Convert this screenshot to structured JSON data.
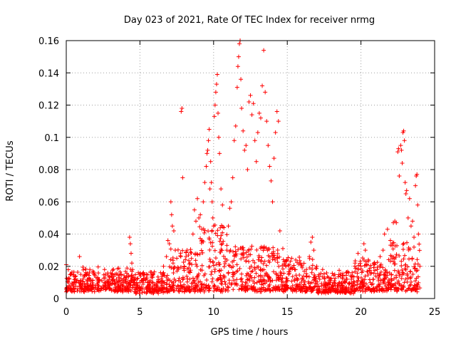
{
  "chart_data": {
    "type": "scatter",
    "title": "Day 023 of 2021, Rate Of TEC Index for receiver nrmg",
    "xlabel": "GPS time / hours",
    "ylabel": "ROTI / TECUs",
    "xlim": [
      0,
      25
    ],
    "ylim": [
      0,
      0.16
    ],
    "xticks": [
      0,
      5,
      10,
      15,
      20,
      25
    ],
    "yticks": [
      0,
      0.02,
      0.04,
      0.06,
      0.08,
      0.1,
      0.12,
      0.14,
      0.16
    ],
    "xtick_labels": [
      "0",
      "5",
      "10",
      "15",
      "20",
      "25"
    ],
    "ytick_labels": [
      "0",
      "0.02",
      "0.04",
      "0.06",
      "0.08",
      "0.1",
      "0.12",
      "0.14",
      "0.16"
    ],
    "grid": true,
    "marker": "+",
    "series": [
      {
        "name": "ROTI",
        "color": "#ff0000",
        "points": [
          [
            0.0,
            0.021
          ],
          [
            0.1,
            0.012
          ],
          [
            0.2,
            0.008
          ],
          [
            0.3,
            0.015
          ],
          [
            0.5,
            0.006
          ],
          [
            0.7,
            0.011
          ],
          [
            0.9,
            0.026
          ],
          [
            1.0,
            0.009
          ],
          [
            1.2,
            0.014
          ],
          [
            1.4,
            0.007
          ],
          [
            1.6,
            0.012
          ],
          [
            1.8,
            0.017
          ],
          [
            2.0,
            0.008
          ],
          [
            2.2,
            0.011
          ],
          [
            2.4,
            0.006
          ],
          [
            2.6,
            0.018
          ],
          [
            2.8,
            0.01
          ],
          [
            3.1,
            0.013
          ],
          [
            3.3,
            0.007
          ],
          [
            3.5,
            0.015
          ],
          [
            3.7,
            0.009
          ],
          [
            3.9,
            0.012
          ],
          [
            4.1,
            0.006
          ],
          [
            4.3,
            0.038
          ],
          [
            4.35,
            0.034
          ],
          [
            4.4,
            0.028
          ],
          [
            4.45,
            0.022
          ],
          [
            4.5,
            0.018
          ],
          [
            4.6,
            0.013
          ],
          [
            4.8,
            0.008
          ],
          [
            5.0,
            0.01
          ],
          [
            5.2,
            0.006
          ],
          [
            5.4,
            0.012
          ],
          [
            5.6,
            0.008
          ],
          [
            5.8,
            0.014
          ],
          [
            6.0,
            0.009
          ],
          [
            6.2,
            0.007
          ],
          [
            6.4,
            0.016
          ],
          [
            6.6,
            0.02
          ],
          [
            6.8,
            0.026
          ],
          [
            6.9,
            0.036
          ],
          [
            7.0,
            0.034
          ],
          [
            7.1,
            0.06
          ],
          [
            7.15,
            0.052
          ],
          [
            7.2,
            0.045
          ],
          [
            7.3,
            0.042
          ],
          [
            7.4,
            0.03
          ],
          [
            7.5,
            0.025
          ],
          [
            7.6,
            0.018
          ],
          [
            7.8,
            0.116
          ],
          [
            7.85,
            0.118
          ],
          [
            7.9,
            0.075
          ],
          [
            8.0,
            0.02
          ],
          [
            8.2,
            0.03
          ],
          [
            8.4,
            0.022
          ],
          [
            8.6,
            0.04
          ],
          [
            8.7,
            0.055
          ],
          [
            8.8,
            0.048
          ],
          [
            8.9,
            0.062
          ],
          [
            9.0,
            0.05
          ],
          [
            9.1,
            0.052
          ],
          [
            9.2,
            0.043
          ],
          [
            9.3,
            0.06
          ],
          [
            9.4,
            0.072
          ],
          [
            9.5,
            0.082
          ],
          [
            9.55,
            0.09
          ],
          [
            9.6,
            0.092
          ],
          [
            9.65,
            0.098
          ],
          [
            9.7,
            0.105
          ],
          [
            9.75,
            0.068
          ],
          [
            9.8,
            0.085
          ],
          [
            9.85,
            0.072
          ],
          [
            9.9,
            0.06
          ],
          [
            9.95,
            0.05
          ],
          [
            10.0,
            0.045
          ],
          [
            10.05,
            0.113
          ],
          [
            10.1,
            0.12
          ],
          [
            10.15,
            0.128
          ],
          [
            10.2,
            0.133
          ],
          [
            10.25,
            0.139
          ],
          [
            10.3,
            0.115
          ],
          [
            10.35,
            0.1
          ],
          [
            10.4,
            0.09
          ],
          [
            10.5,
            0.068
          ],
          [
            10.6,
            0.058
          ],
          [
            10.7,
            0.044
          ],
          [
            10.9,
            0.03
          ],
          [
            11.0,
            0.045
          ],
          [
            11.1,
            0.056
          ],
          [
            11.2,
            0.06
          ],
          [
            11.3,
            0.075
          ],
          [
            11.4,
            0.098
          ],
          [
            11.5,
            0.107
          ],
          [
            11.6,
            0.131
          ],
          [
            11.65,
            0.144
          ],
          [
            11.7,
            0.15
          ],
          [
            11.75,
            0.158
          ],
          [
            11.8,
            0.16
          ],
          [
            11.85,
            0.136
          ],
          [
            11.9,
            0.118
          ],
          [
            12.0,
            0.104
          ],
          [
            12.1,
            0.092
          ],
          [
            12.2,
            0.095
          ],
          [
            12.3,
            0.08
          ],
          [
            12.4,
            0.122
          ],
          [
            12.5,
            0.126
          ],
          [
            12.6,
            0.114
          ],
          [
            12.7,
            0.121
          ],
          [
            12.8,
            0.098
          ],
          [
            12.9,
            0.085
          ],
          [
            13.0,
            0.103
          ],
          [
            13.1,
            0.115
          ],
          [
            13.2,
            0.112
          ],
          [
            13.3,
            0.132
          ],
          [
            13.4,
            0.154
          ],
          [
            13.5,
            0.128
          ],
          [
            13.6,
            0.11
          ],
          [
            13.7,
            0.095
          ],
          [
            13.8,
            0.082
          ],
          [
            13.9,
            0.073
          ],
          [
            14.0,
            0.06
          ],
          [
            14.1,
            0.087
          ],
          [
            14.2,
            0.103
          ],
          [
            14.3,
            0.116
          ],
          [
            14.4,
            0.11
          ],
          [
            14.5,
            0.042
          ],
          [
            14.7,
            0.031
          ],
          [
            14.9,
            0.02
          ],
          [
            15.1,
            0.015
          ],
          [
            15.3,
            0.025
          ],
          [
            15.5,
            0.018
          ],
          [
            15.7,
            0.012
          ],
          [
            15.9,
            0.022
          ],
          [
            16.1,
            0.014
          ],
          [
            16.3,
            0.018
          ],
          [
            16.5,
            0.026
          ],
          [
            16.6,
            0.035
          ],
          [
            16.7,
            0.038
          ],
          [
            16.8,
            0.03
          ],
          [
            17.0,
            0.02
          ],
          [
            17.2,
            0.012
          ],
          [
            17.4,
            0.018
          ],
          [
            17.6,
            0.009
          ],
          [
            17.8,
            0.013
          ],
          [
            18.0,
            0.006
          ],
          [
            18.2,
            0.011
          ],
          [
            18.4,
            0.008
          ],
          [
            18.6,
            0.014
          ],
          [
            18.8,
            0.007
          ],
          [
            19.0,
            0.012
          ],
          [
            19.2,
            0.009
          ],
          [
            19.4,
            0.016
          ],
          [
            19.6,
            0.022
          ],
          [
            19.8,
            0.028
          ],
          [
            20.0,
            0.02
          ],
          [
            20.2,
            0.034
          ],
          [
            20.3,
            0.03
          ],
          [
            20.5,
            0.024
          ],
          [
            20.7,
            0.016
          ],
          [
            20.9,
            0.022
          ],
          [
            21.1,
            0.018
          ],
          [
            21.3,
            0.026
          ],
          [
            21.5,
            0.03
          ],
          [
            21.6,
            0.04
          ],
          [
            21.8,
            0.043
          ],
          [
            22.0,
            0.036
          ],
          [
            22.1,
            0.033
          ],
          [
            22.2,
            0.047
          ],
          [
            22.3,
            0.048
          ],
          [
            22.4,
            0.047
          ],
          [
            22.5,
            0.091
          ],
          [
            22.55,
            0.093
          ],
          [
            22.6,
            0.076
          ],
          [
            22.7,
            0.095
          ],
          [
            22.75,
            0.092
          ],
          [
            22.8,
            0.084
          ],
          [
            22.85,
            0.103
          ],
          [
            22.9,
            0.104
          ],
          [
            22.95,
            0.098
          ],
          [
            23.0,
            0.072
          ],
          [
            23.05,
            0.065
          ],
          [
            23.1,
            0.067
          ],
          [
            23.2,
            0.05
          ],
          [
            23.3,
            0.062
          ],
          [
            23.4,
            0.045
          ],
          [
            23.5,
            0.048
          ],
          [
            23.6,
            0.038
          ],
          [
            23.7,
            0.07
          ],
          [
            23.75,
            0.076
          ],
          [
            23.8,
            0.077
          ],
          [
            23.85,
            0.058
          ],
          [
            23.9,
            0.04
          ],
          [
            24.0,
            0.02
          ]
        ],
        "bands": [
          [
            0.0,
            4.5,
            0.004,
            0.018
          ],
          [
            4.5,
            7.0,
            0.003,
            0.016
          ],
          [
            7.0,
            9.0,
            0.004,
            0.03
          ],
          [
            9.0,
            11.0,
            0.004,
            0.045
          ],
          [
            11.0,
            14.5,
            0.004,
            0.032
          ],
          [
            14.5,
            17.0,
            0.004,
            0.024
          ],
          [
            17.0,
            19.5,
            0.003,
            0.016
          ],
          [
            19.5,
            22.0,
            0.004,
            0.024
          ],
          [
            22.0,
            24.0,
            0.004,
            0.035
          ]
        ]
      }
    ]
  }
}
